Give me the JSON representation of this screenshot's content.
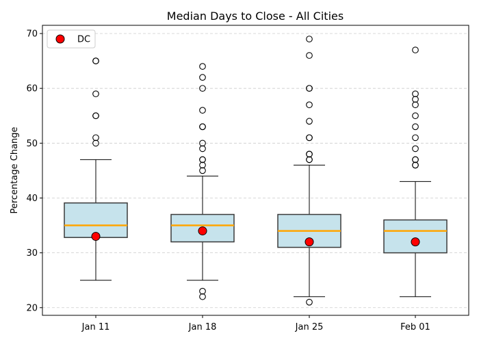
{
  "chart_data": {
    "type": "box",
    "title": "Median Days to Close - All Cities",
    "xlabel": "",
    "ylabel": "Percentage Change",
    "ylim": [
      18.6,
      71.5
    ],
    "yticks": [
      20,
      30,
      40,
      50,
      60,
      70
    ],
    "grid": "y-dashed",
    "legend": {
      "placement": "top-left",
      "entries": [
        "DC"
      ]
    },
    "categories": [
      "Jan 11",
      "Jan 18",
      "Jan 25",
      "Feb 01"
    ],
    "boxes": [
      {
        "whisker_low": 25,
        "q1": 32.8,
        "median": 35,
        "q3": 39.1,
        "whisker_high": 47,
        "outliers": [
          50,
          51,
          55,
          55,
          59,
          65,
          65
        ]
      },
      {
        "whisker_low": 25,
        "q1": 32,
        "median": 35,
        "q3": 37,
        "whisker_high": 44,
        "outliers": [
          22,
          23,
          45,
          46,
          47,
          47,
          49,
          50,
          53,
          53,
          56,
          60,
          62,
          64
        ]
      },
      {
        "whisker_low": 22,
        "q1": 31,
        "median": 34,
        "q3": 37,
        "whisker_high": 46,
        "outliers": [
          21,
          47,
          47,
          48,
          48,
          51,
          51,
          54,
          57,
          60,
          60,
          66,
          69
        ]
      },
      {
        "whisker_low": 22,
        "q1": 30,
        "median": 34,
        "q3": 36,
        "whisker_high": 43,
        "outliers": [
          46,
          46,
          47,
          47,
          49,
          51,
          53,
          55,
          57,
          58,
          59,
          67
        ]
      }
    ],
    "series": [
      {
        "name": "DC",
        "values": [
          33,
          34,
          32,
          32
        ]
      }
    ],
    "colors": {
      "box_fill": "#c6e3ec",
      "box_edge": "#3a3a3a",
      "median": "#ffa500",
      "marker": "#ff0000",
      "grid": "#cccccc"
    }
  }
}
